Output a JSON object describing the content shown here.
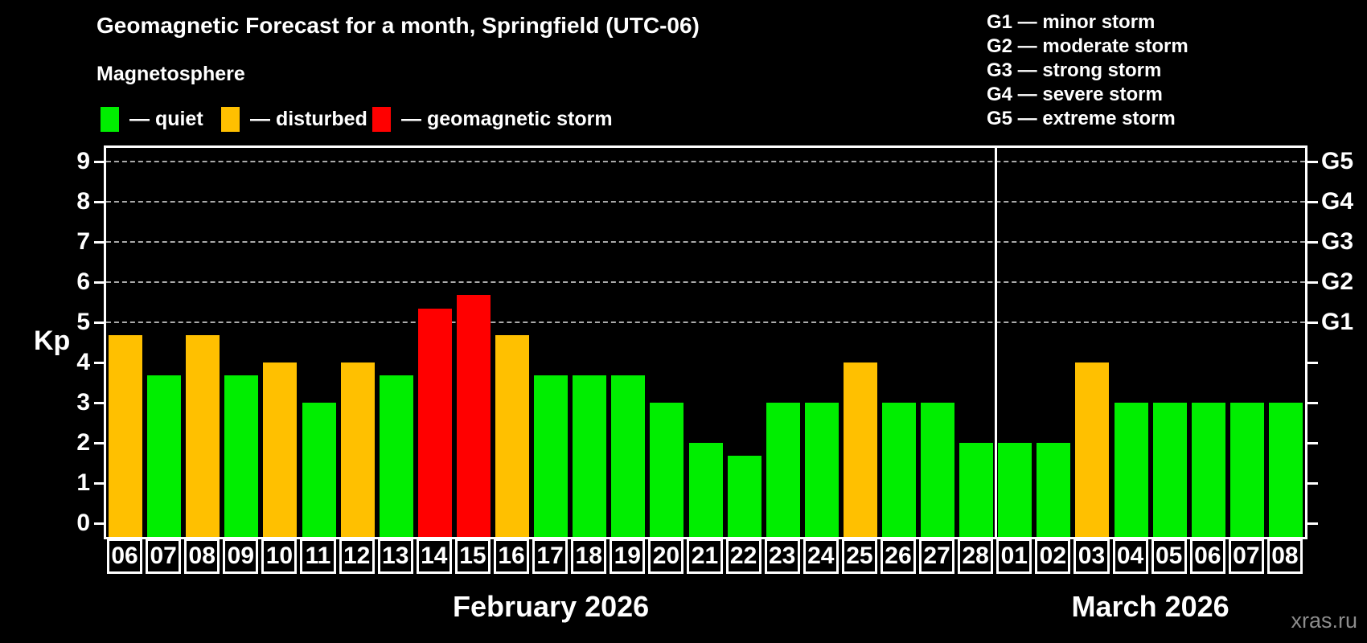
{
  "header": {
    "title": "Geomagnetic Forecast for a month, Springfield (UTC-06)",
    "subtitle": "Magnetosphere"
  },
  "colors": {
    "quiet": "#00ee00",
    "disturbed": "#ffc000",
    "storm": "#ff0000",
    "grid": "#ababab",
    "axis": "#ffffff",
    "background": "#000000",
    "watermark_text": "#8c8c8c"
  },
  "legend": {
    "items": [
      {
        "key": "quiet",
        "label": "— quiet"
      },
      {
        "key": "disturbed",
        "label": "— disturbed"
      },
      {
        "key": "storm",
        "label": "— geomagnetic storm"
      }
    ]
  },
  "g_legend": {
    "items": [
      "G1 — minor storm",
      "G2 — moderate storm",
      "G3 — strong storm",
      "G4 — severe storm",
      "G5 — extreme storm"
    ]
  },
  "watermark": "xras.ru",
  "chart_data": {
    "type": "bar",
    "title": "Geomagnetic Forecast for a month, Springfield (UTC-06)",
    "ylabel": "Kp",
    "ylim": [
      0,
      9
    ],
    "yticks": [
      "0",
      "1",
      "2",
      "3",
      "4",
      "5",
      "6",
      "7",
      "8",
      "9"
    ],
    "grid": "dashed horizontal at Kp 5-9 (G1-G5 levels)",
    "legend_position": "top",
    "right_axis": [
      {
        "kp": 5,
        "label": "G1"
      },
      {
        "kp": 6,
        "label": "G2"
      },
      {
        "kp": 7,
        "label": "G3"
      },
      {
        "kp": 8,
        "label": "G4"
      },
      {
        "kp": 9,
        "label": "G5"
      }
    ],
    "months": [
      {
        "label": "February 2026",
        "days": 23
      },
      {
        "label": "March 2026",
        "days": 8
      }
    ],
    "bars": [
      {
        "day": "06",
        "kp": 4.67,
        "status": "disturbed"
      },
      {
        "day": "07",
        "kp": 3.67,
        "status": "quiet"
      },
      {
        "day": "08",
        "kp": 4.67,
        "status": "disturbed"
      },
      {
        "day": "09",
        "kp": 3.67,
        "status": "quiet"
      },
      {
        "day": "10",
        "kp": 4.0,
        "status": "disturbed"
      },
      {
        "day": "11",
        "kp": 3.0,
        "status": "quiet"
      },
      {
        "day": "12",
        "kp": 4.0,
        "status": "disturbed"
      },
      {
        "day": "13",
        "kp": 3.67,
        "status": "quiet"
      },
      {
        "day": "14",
        "kp": 5.33,
        "status": "storm"
      },
      {
        "day": "15",
        "kp": 5.67,
        "status": "storm"
      },
      {
        "day": "16",
        "kp": 4.67,
        "status": "disturbed"
      },
      {
        "day": "17",
        "kp": 3.67,
        "status": "quiet"
      },
      {
        "day": "18",
        "kp": 3.67,
        "status": "quiet"
      },
      {
        "day": "19",
        "kp": 3.67,
        "status": "quiet"
      },
      {
        "day": "20",
        "kp": 3.0,
        "status": "quiet"
      },
      {
        "day": "21",
        "kp": 2.0,
        "status": "quiet"
      },
      {
        "day": "22",
        "kp": 1.67,
        "status": "quiet"
      },
      {
        "day": "23",
        "kp": 3.0,
        "status": "quiet"
      },
      {
        "day": "24",
        "kp": 3.0,
        "status": "quiet"
      },
      {
        "day": "25",
        "kp": 4.0,
        "status": "disturbed"
      },
      {
        "day": "26",
        "kp": 3.0,
        "status": "quiet"
      },
      {
        "day": "27",
        "kp": 3.0,
        "status": "quiet"
      },
      {
        "day": "28",
        "kp": 2.0,
        "status": "quiet"
      },
      {
        "day": "01",
        "kp": 2.0,
        "status": "quiet"
      },
      {
        "day": "02",
        "kp": 2.0,
        "status": "quiet"
      },
      {
        "day": "03",
        "kp": 4.0,
        "status": "disturbed"
      },
      {
        "day": "04",
        "kp": 3.0,
        "status": "quiet"
      },
      {
        "day": "05",
        "kp": 3.0,
        "status": "quiet"
      },
      {
        "day": "06",
        "kp": 3.0,
        "status": "quiet"
      },
      {
        "day": "07",
        "kp": 3.0,
        "status": "quiet"
      },
      {
        "day": "08",
        "kp": 3.0,
        "status": "quiet"
      }
    ]
  }
}
